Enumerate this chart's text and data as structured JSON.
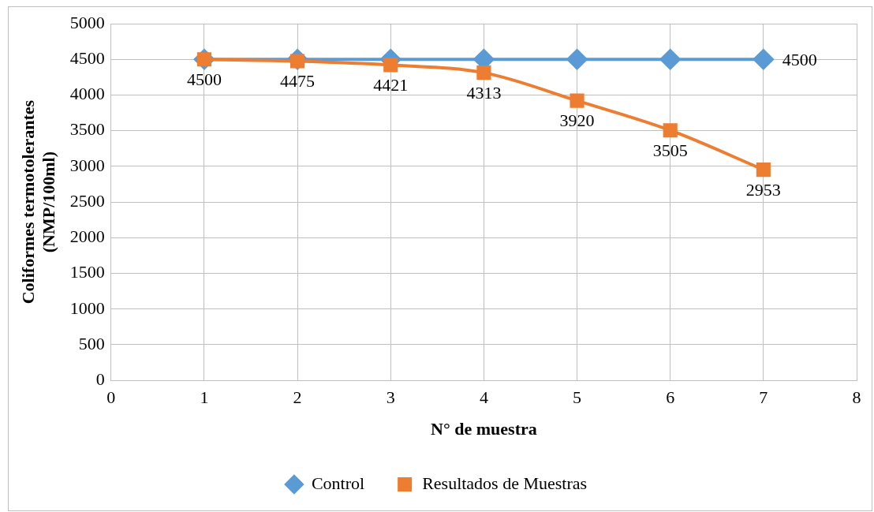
{
  "chart_data": {
    "type": "line",
    "xlabel": "N° de muestra",
    "ylabel": "Coliformes termotolerantes (NMP/100ml)",
    "x": [
      1,
      2,
      3,
      4,
      5,
      6,
      7
    ],
    "series": [
      {
        "name": "Control",
        "color": "#5b9bd5",
        "marker": "diamond",
        "values": [
          4500,
          4500,
          4500,
          4500,
          4500,
          4500,
          4500
        ],
        "value_labels": [
          null,
          null,
          null,
          null,
          null,
          null,
          "4500"
        ]
      },
      {
        "name": "Resultados de Muestras",
        "color": "#ed7d31",
        "marker": "square",
        "values": [
          4500,
          4475,
          4421,
          4313,
          3920,
          3505,
          2953
        ],
        "value_labels": [
          "4500",
          "4475",
          "4421",
          "4313",
          "3920",
          "3505",
          "2953"
        ]
      }
    ],
    "xlim": [
      0,
      8
    ],
    "xticks": [
      0,
      1,
      2,
      3,
      4,
      5,
      6,
      7,
      8
    ],
    "ylim": [
      0,
      5000
    ],
    "yticks": [
      0,
      500,
      1000,
      1500,
      2000,
      2500,
      3000,
      3500,
      4000,
      4500,
      5000
    ],
    "grid": true,
    "legend": "bottom"
  }
}
